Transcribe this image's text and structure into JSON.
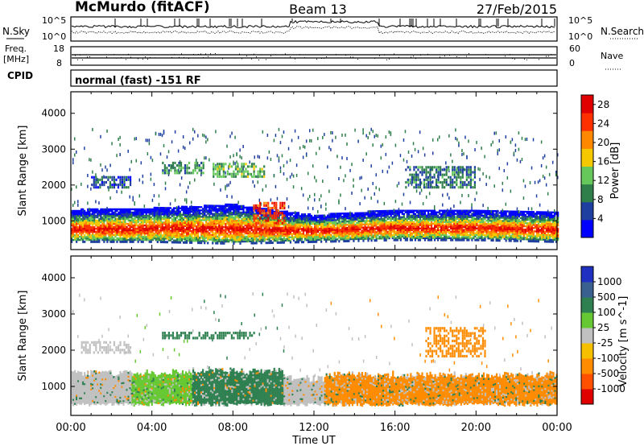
{
  "header": {
    "station": "McMurdo (fitACF)",
    "beam": "Beam 13",
    "date": "27/Feb/2015"
  },
  "noise_panel": {
    "left_label": "N.Sky",
    "right_label": "N.Search",
    "left_ticks": [
      "10^5",
      "10^0"
    ],
    "right_ticks": [
      "10^5",
      "10^0"
    ]
  },
  "freq_panel": {
    "left_label_top": "Freq.",
    "left_label_bottom": "[MHz]",
    "left_ticks": [
      "18",
      "8"
    ],
    "right_label": "Nave",
    "right_ticks": [
      "60",
      "0"
    ]
  },
  "cpid": {
    "label": "CPID",
    "text": "normal (fast) -151 RF"
  },
  "time_axis": {
    "ticks": [
      "00:00",
      "04:00",
      "08:00",
      "12:00",
      "16:00",
      "20:00",
      "00:00"
    ],
    "label": "Time UT"
  },
  "chart_data": [
    {
      "type": "heatmap",
      "title": "",
      "xlabel": "Time UT",
      "ylabel": "Slant Range [km]",
      "x_range_hours": [
        0,
        24
      ],
      "ylim": [
        200,
        4600
      ],
      "yticks": [
        "1000",
        "2000",
        "3000",
        "4000"
      ],
      "colorbar": {
        "label": "Power [dB]",
        "ticks": [
          "4",
          "8",
          "12",
          "16",
          "20",
          "24",
          "28"
        ],
        "range": [
          0,
          30
        ],
        "colors": [
          "#0000ff",
          "#1f3fa0",
          "#2e7f4a",
          "#66c85a",
          "#f5c800",
          "#ff8800",
          "#ff3000",
          "#e00000"
        ]
      },
      "main_band": [
        {
          "t": 0,
          "range": [
            450,
            1300
          ]
        },
        {
          "t": 4,
          "range": [
            450,
            1350
          ]
        },
        {
          "t": 8,
          "range": [
            400,
            1450
          ]
        },
        {
          "t": 12,
          "range": [
            450,
            1150
          ]
        },
        {
          "t": 16,
          "range": [
            500,
            1300
          ]
        },
        {
          "t": 20,
          "range": [
            500,
            1300
          ]
        },
        {
          "t": 24,
          "range": [
            450,
            1250
          ]
        }
      ],
      "echo_patches": [
        {
          "t": [
            4.5,
            6.5
          ],
          "range": [
            2300,
            2600
          ],
          "db": 10
        },
        {
          "t": [
            7,
            9.5
          ],
          "range": [
            2200,
            2600
          ],
          "db": 12
        },
        {
          "t": [
            1,
            3
          ],
          "range": [
            1900,
            2200
          ],
          "db": 6
        },
        {
          "t": [
            16.5,
            20
          ],
          "range": [
            1900,
            2500
          ],
          "db": 8
        },
        {
          "t": [
            9,
            10.5
          ],
          "range": [
            900,
            1500
          ],
          "db": 24
        }
      ]
    },
    {
      "type": "heatmap",
      "title": "",
      "xlabel": "Time UT",
      "ylabel": "Slant Range [km]",
      "x_range_hours": [
        0,
        24
      ],
      "ylim": [
        200,
        4600
      ],
      "yticks": [
        "1000",
        "2000",
        "3000",
        "4000"
      ],
      "colorbar": {
        "label": "Velocity [m s^-1]",
        "ticks": [
          "1000",
          "500",
          "100",
          "25",
          "-25",
          "-100",
          "-500",
          "-1000"
        ],
        "colors": [
          "#2030c0",
          "#3a6090",
          "#2e8050",
          "#66c832",
          "#c0c0c0",
          "#f5c000",
          "#ff8c00",
          "#ff5000",
          "#e00000"
        ]
      },
      "segments": [
        {
          "t": [
            0,
            3
          ],
          "range": [
            500,
            1350
          ],
          "velocity": "-25"
        },
        {
          "t": [
            3,
            6
          ],
          "range": [
            500,
            1350
          ],
          "velocity": "25"
        },
        {
          "t": [
            6,
            10.5
          ],
          "range": [
            500,
            1400
          ],
          "velocity": "100"
        },
        {
          "t": [
            10.5,
            12.5
          ],
          "range": [
            500,
            1200
          ],
          "velocity": "-25"
        },
        {
          "t": [
            12.5,
            24
          ],
          "range": [
            500,
            1300
          ],
          "velocity": "-100"
        }
      ],
      "echo_patches": [
        {
          "t": [
            4.5,
            9
          ],
          "range": [
            2300,
            2500
          ],
          "velocity": "100"
        },
        {
          "t": [
            17.5,
            20.5
          ],
          "range": [
            1800,
            2600
          ],
          "velocity": "-100"
        },
        {
          "t": [
            0.5,
            3
          ],
          "range": [
            1900,
            2200
          ],
          "velocity": "-25"
        }
      ]
    }
  ]
}
